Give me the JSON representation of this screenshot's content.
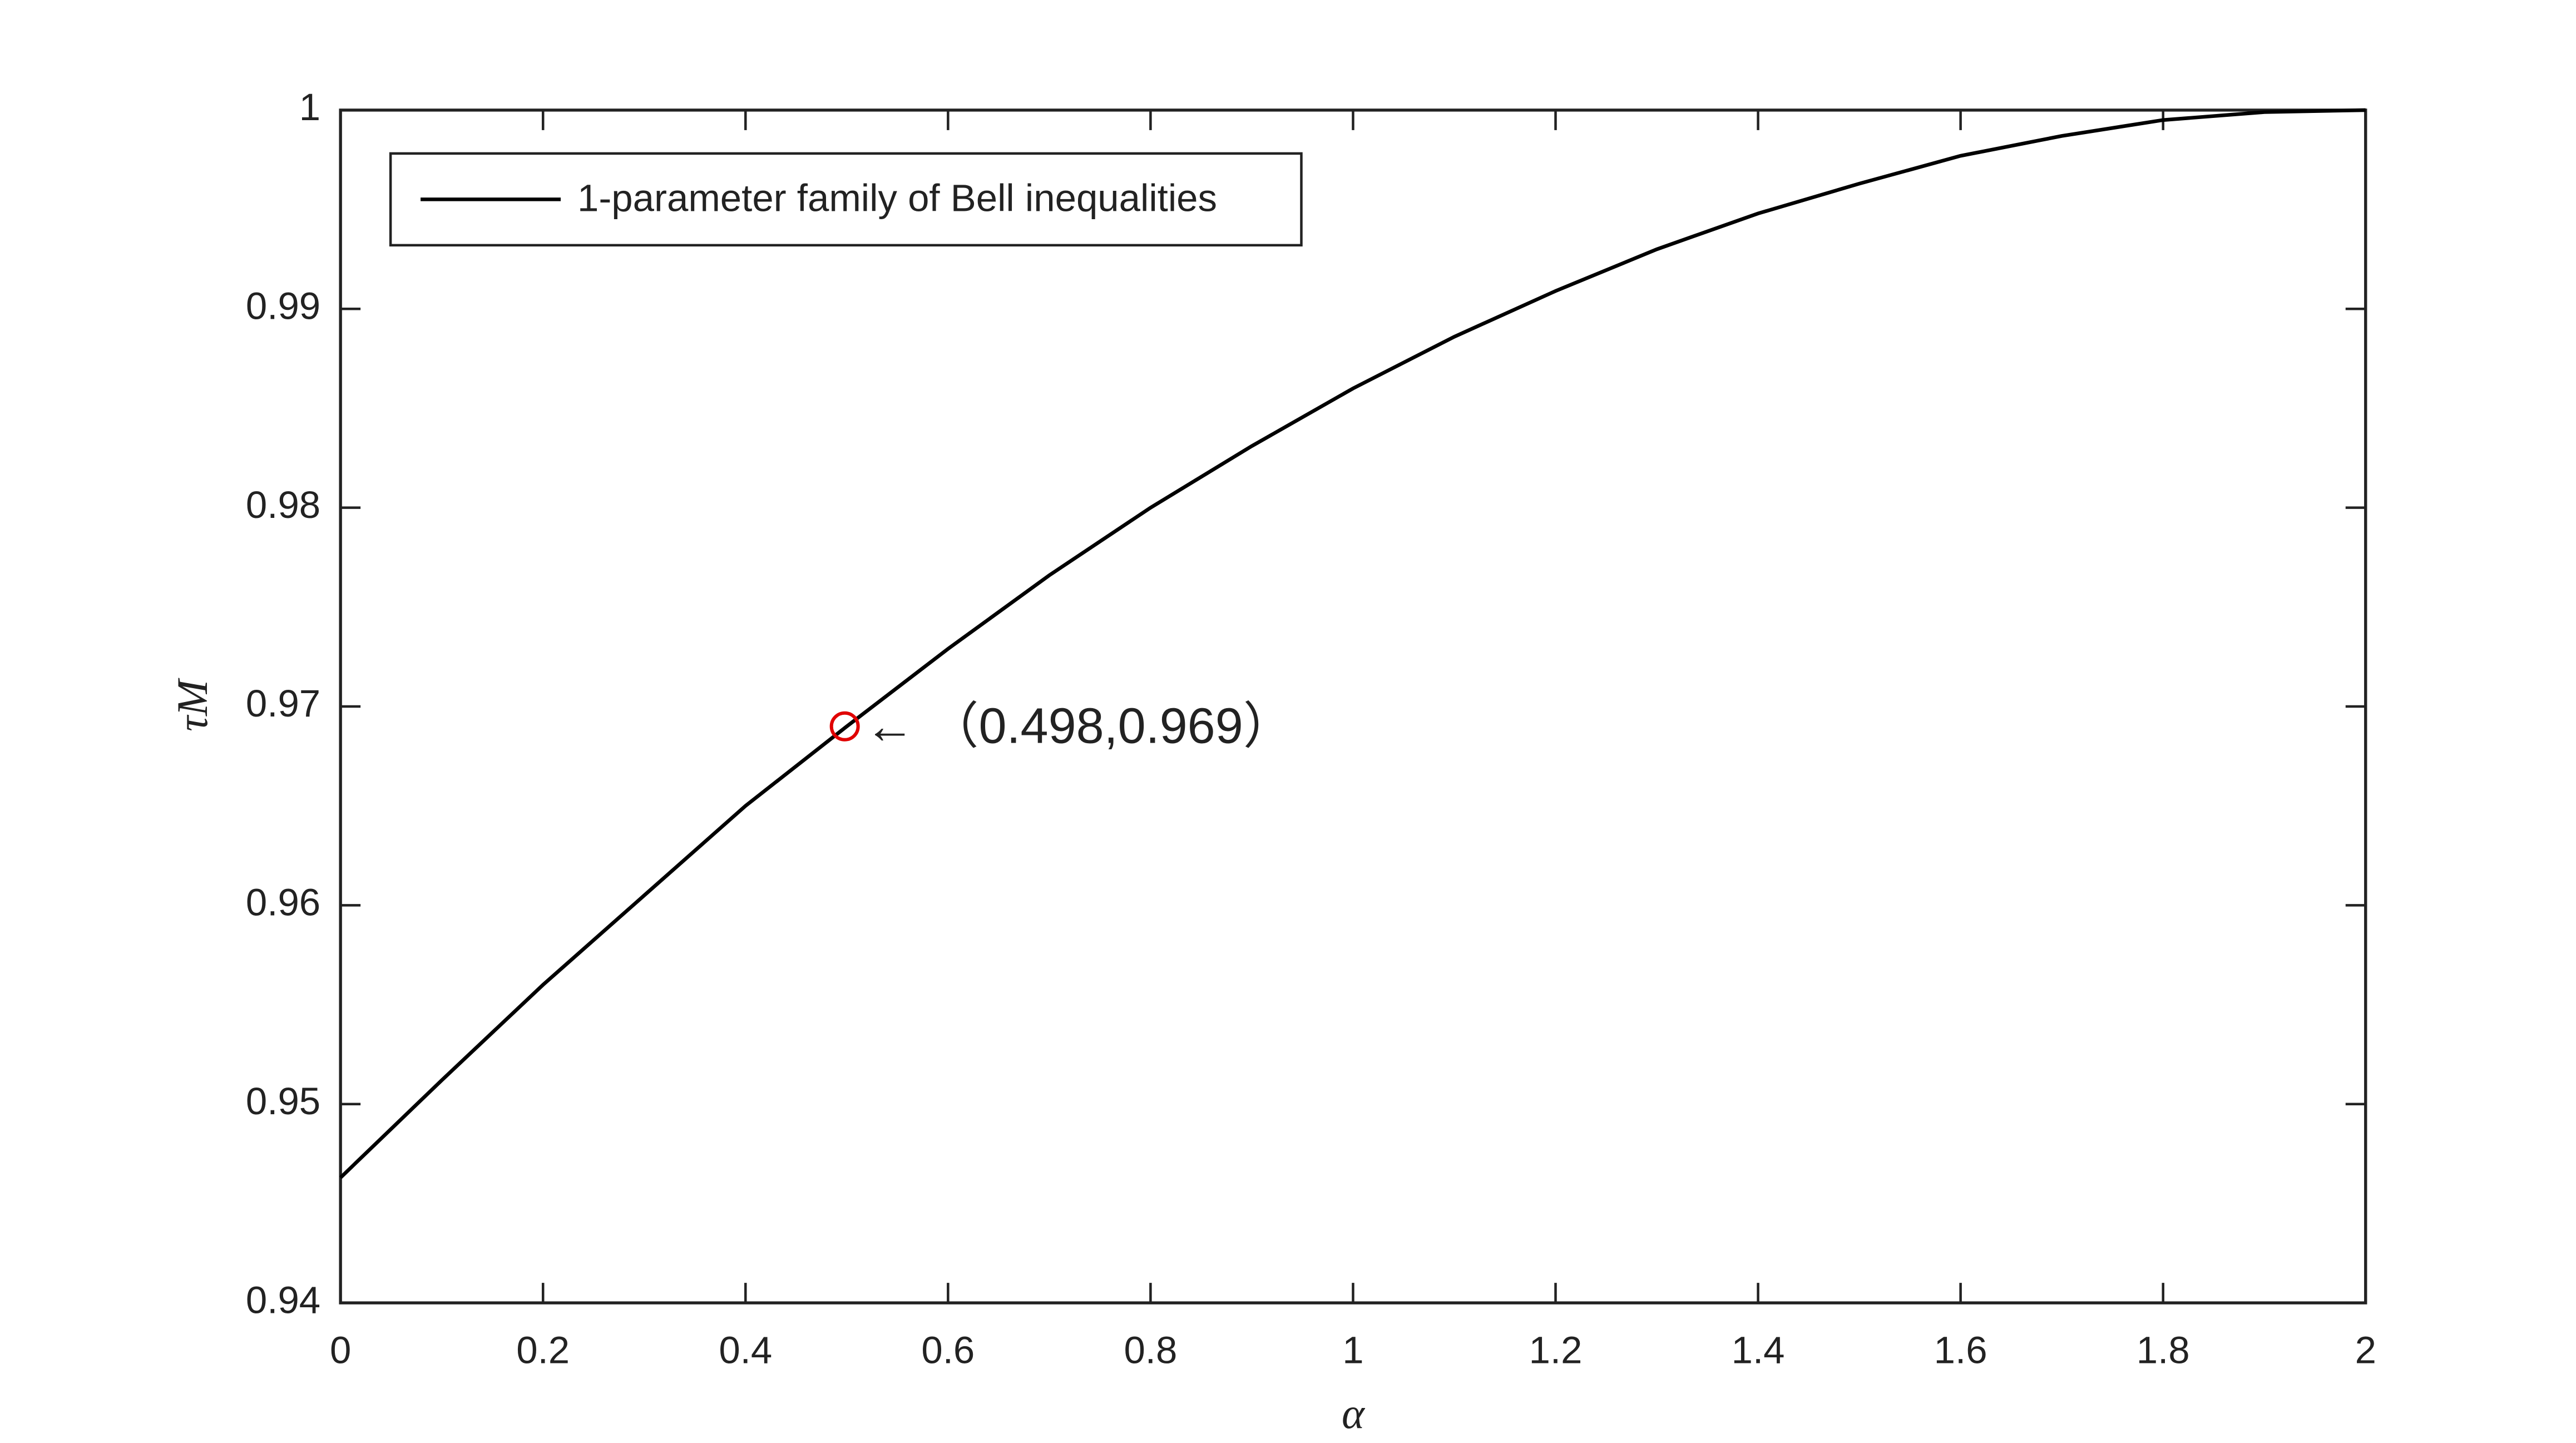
{
  "chart_data": {
    "type": "line",
    "x_label": "α",
    "y_label": "τM",
    "x": [
      0,
      0.1,
      0.2,
      0.3,
      0.4,
      0.5,
      0.6,
      0.7,
      0.8,
      0.9,
      1.0,
      1.1,
      1.2,
      1.3,
      1.4,
      1.5,
      1.6,
      1.7,
      1.8,
      1.9,
      2.0
    ],
    "series": [
      {
        "name": "1-parameter family of Bell inequalities",
        "color": "#000000",
        "values": [
          0.9463,
          0.9512,
          0.956,
          0.9605,
          0.965,
          0.969,
          0.9729,
          0.9766,
          0.98,
          0.9831,
          0.986,
          0.9886,
          0.9909,
          0.993,
          0.9948,
          0.9963,
          0.9977,
          0.9987,
          0.9995,
          0.9999,
          1.0
        ]
      }
    ],
    "xlim": [
      0,
      2
    ],
    "ylim": [
      0.94,
      1
    ],
    "xticks": [
      0,
      0.2,
      0.4,
      0.6,
      0.8,
      1,
      1.2,
      1.4,
      1.6,
      1.8,
      2
    ],
    "yticks": [
      0.94,
      0.95,
      0.96,
      0.97,
      0.98,
      0.99,
      1
    ],
    "grid": false,
    "legend": "upper left",
    "annotation": {
      "text": "←  （0.498,0.969）",
      "x": 0.498,
      "y": 0.969,
      "color": "#e00000"
    }
  }
}
